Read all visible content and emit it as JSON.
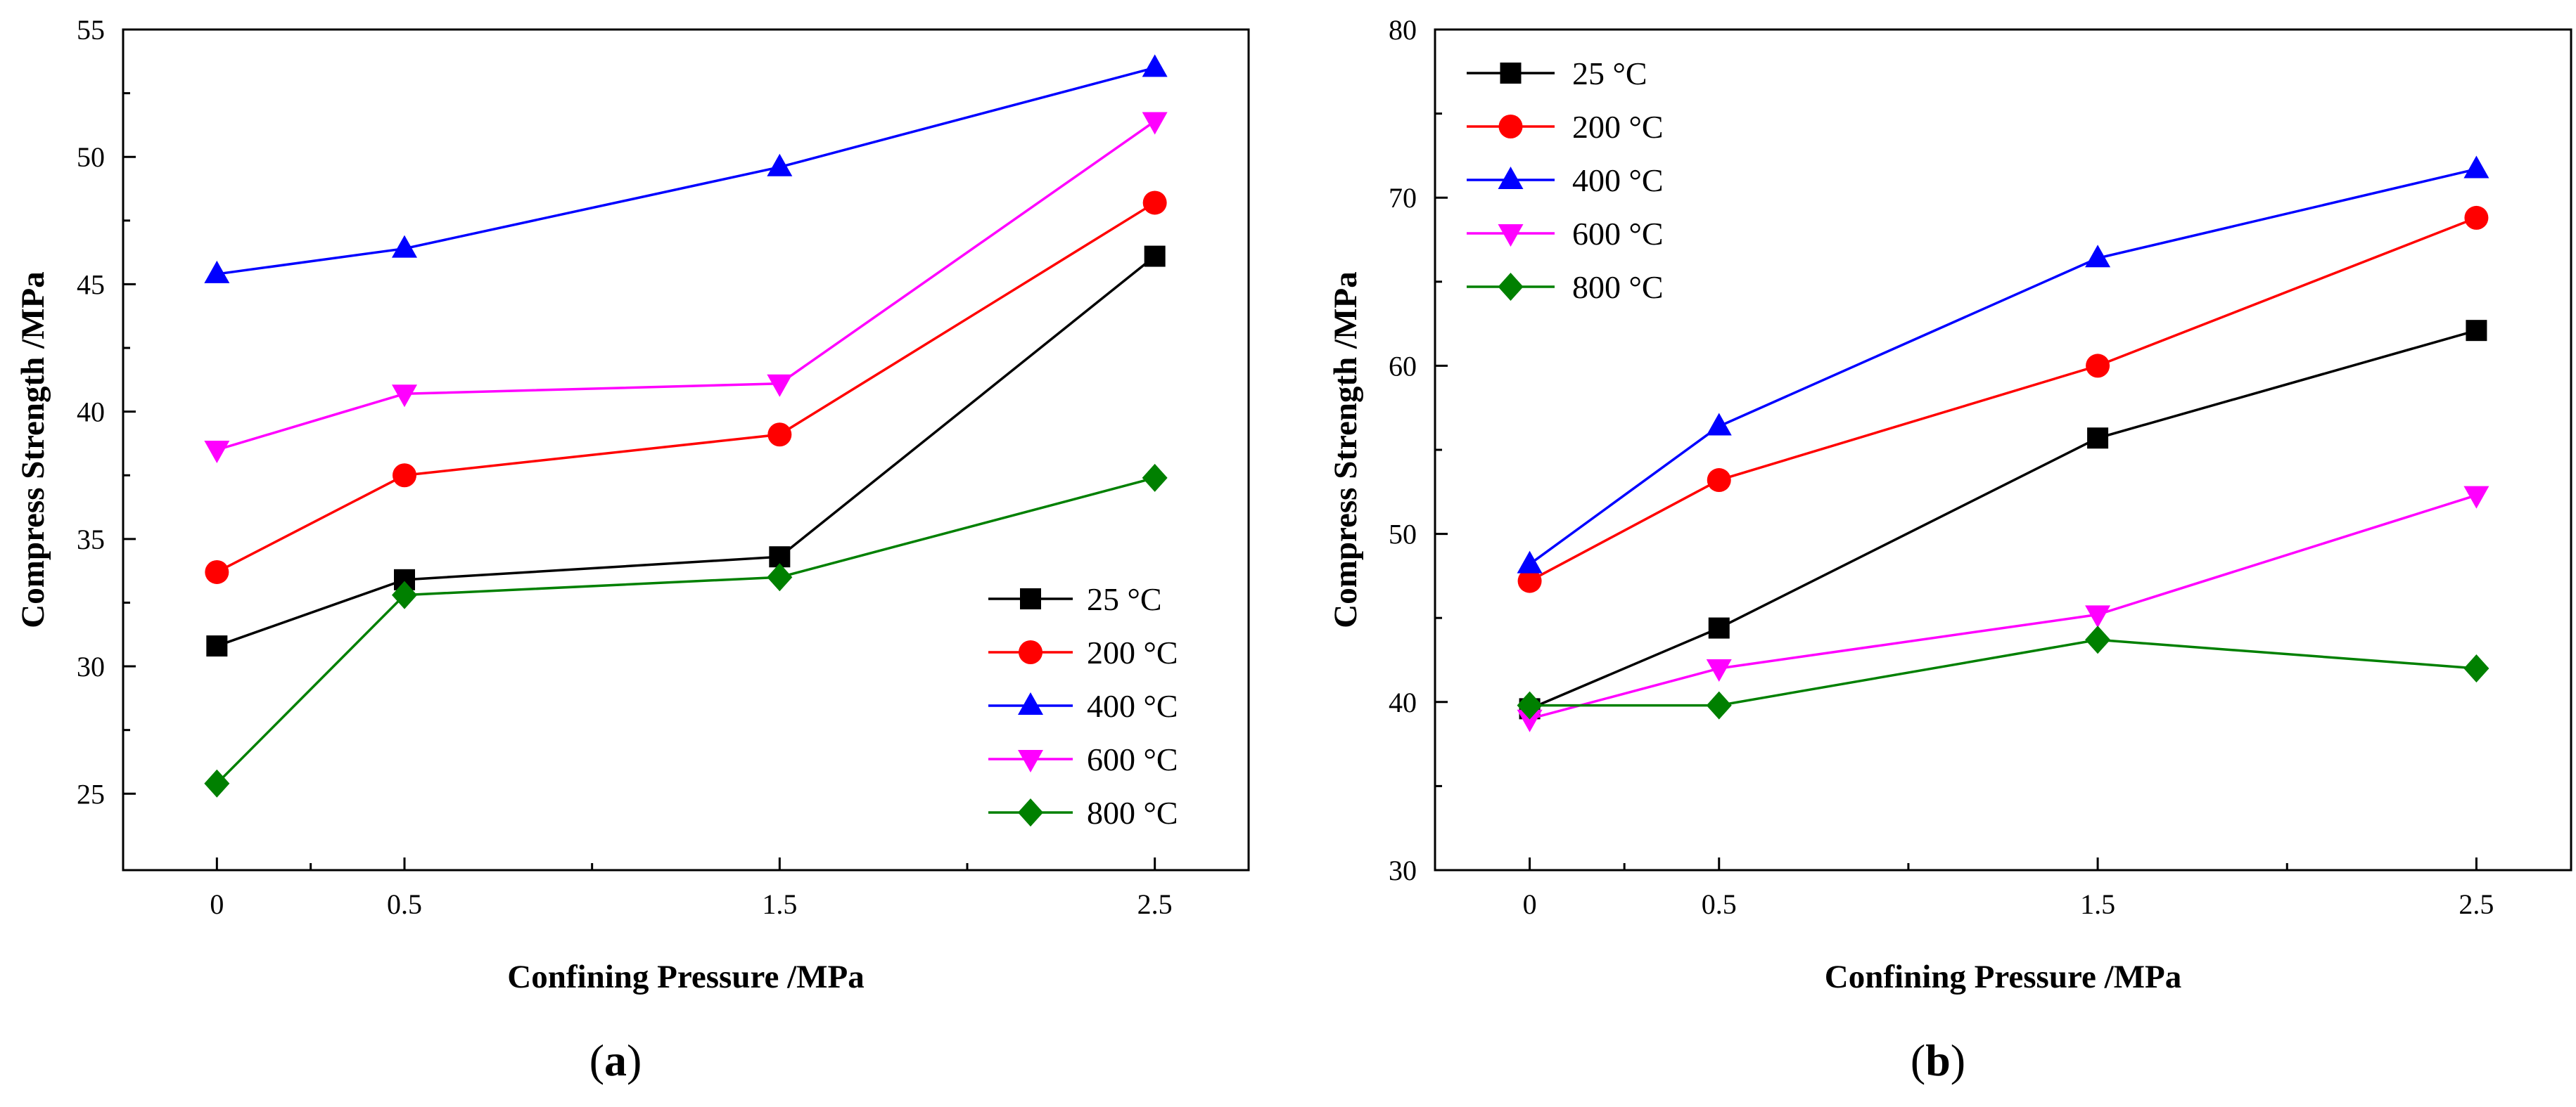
{
  "figure": {
    "panel_labels": [
      {
        "open": "(",
        "letter": "a",
        "close": ")"
      },
      {
        "open": "(",
        "letter": "b",
        "close": ")"
      }
    ]
  },
  "chart_data": [
    {
      "type": "line",
      "title": "",
      "xlabel": "Confining Pressure /MPa",
      "ylabel": "Compress Strength /MPa",
      "x": [
        0,
        0.5,
        1.5,
        2.5
      ],
      "xtick_labels": [
        "0",
        "0.5",
        "1.5",
        "2.5"
      ],
      "xlim": [
        -0.25,
        2.75
      ],
      "ylim": [
        22,
        55
      ],
      "yticks": [
        25,
        30,
        35,
        40,
        45,
        50,
        55
      ],
      "legend_position": "bottom-right",
      "series": [
        {
          "name": "25 °C",
          "color": "#000000",
          "marker": "square",
          "values": [
            30.8,
            33.4,
            34.3,
            46.1
          ]
        },
        {
          "name": "200 °C",
          "color": "#ff0000",
          "marker": "circle",
          "values": [
            33.7,
            37.5,
            39.1,
            48.2
          ]
        },
        {
          "name": "400 °C",
          "color": "#0000ff",
          "marker": "triangle-up",
          "values": [
            45.4,
            46.4,
            49.6,
            53.5
          ]
        },
        {
          "name": "600 °C",
          "color": "#ff00ff",
          "marker": "triangle-down",
          "values": [
            38.5,
            40.7,
            41.1,
            51.4
          ]
        },
        {
          "name": "800 °C",
          "color": "#008000",
          "marker": "diamond",
          "values": [
            25.4,
            32.8,
            33.5,
            37.4
          ]
        }
      ]
    },
    {
      "type": "line",
      "title": "",
      "xlabel": "Confining Pressure /MPa",
      "ylabel": "Compress Strength /MPa",
      "x": [
        0,
        0.5,
        1.5,
        2.5
      ],
      "xtick_labels": [
        "0",
        "0.5",
        "1.5",
        "2.5"
      ],
      "xlim": [
        -0.25,
        2.75
      ],
      "ylim": [
        30,
        80
      ],
      "yticks": [
        30,
        40,
        50,
        60,
        70,
        80
      ],
      "legend_position": "top-left",
      "series": [
        {
          "name": "25 °C",
          "color": "#000000",
          "marker": "square",
          "values": [
            39.6,
            44.4,
            55.7,
            62.1
          ]
        },
        {
          "name": "200 °C",
          "color": "#ff0000",
          "marker": "circle",
          "values": [
            47.2,
            53.2,
            60.0,
            68.8
          ]
        },
        {
          "name": "400 °C",
          "color": "#0000ff",
          "marker": "triangle-up",
          "values": [
            48.2,
            56.4,
            66.4,
            71.7
          ]
        },
        {
          "name": "600 °C",
          "color": "#ff00ff",
          "marker": "triangle-down",
          "values": [
            39.0,
            42.0,
            45.2,
            52.3
          ]
        },
        {
          "name": "800 °C",
          "color": "#008000",
          "marker": "diamond",
          "values": [
            39.8,
            39.8,
            43.7,
            42.0
          ]
        }
      ]
    }
  ]
}
